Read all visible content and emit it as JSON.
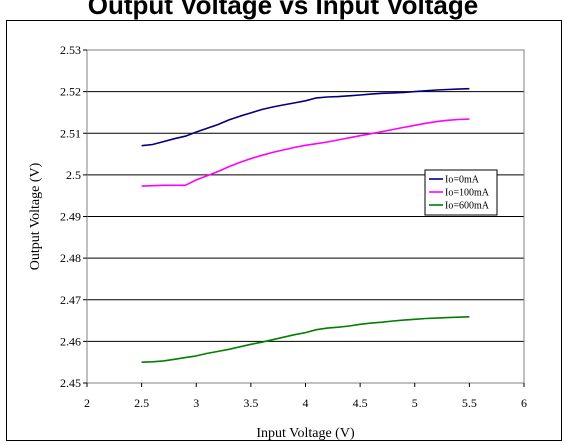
{
  "chart_data": {
    "type": "line",
    "title": "Output Voltage vs Input Voltage",
    "xlabel": "Input Voltage (V)",
    "ylabel": "Output Voltage (V)",
    "xlim": [
      2,
      6
    ],
    "ylim": [
      2.45,
      2.53
    ],
    "x_ticks": [
      "2",
      "2.5",
      "3",
      "3.5",
      "4",
      "4.5",
      "5",
      "5.5",
      "6"
    ],
    "y_ticks": [
      "2.45",
      "2.46",
      "2.47",
      "2.48",
      "2.49",
      "2.5",
      "2.51",
      "2.52",
      "2.53"
    ],
    "grid": "horizontal",
    "legend_position": "right",
    "series": [
      {
        "name": "Io=0mA",
        "color": "#00007f",
        "x": [
          2.5,
          2.6,
          2.7,
          2.8,
          2.9,
          3.0,
          3.1,
          3.2,
          3.3,
          3.4,
          3.5,
          3.6,
          3.7,
          3.8,
          3.9,
          4.0,
          4.1,
          4.2,
          4.3,
          4.4,
          4.5,
          4.6,
          4.7,
          4.8,
          4.9,
          5.0,
          5.1,
          5.2,
          5.3,
          5.4,
          5.5
        ],
        "y": [
          2.507,
          2.5073,
          2.508,
          2.5087,
          2.5093,
          2.5103,
          2.5112,
          2.5121,
          2.5132,
          2.5141,
          2.5149,
          2.5157,
          2.5163,
          2.5168,
          2.5173,
          2.5178,
          2.5185,
          2.5187,
          2.5188,
          2.519,
          2.5192,
          2.5194,
          2.5196,
          2.5197,
          2.5198,
          2.52,
          2.5202,
          2.5204,
          2.5205,
          2.5206,
          2.5207
        ]
      },
      {
        "name": "Io=100mA",
        "color": "#ff00ff",
        "x": [
          2.5,
          2.6,
          2.7,
          2.8,
          2.9,
          3.0,
          3.1,
          3.2,
          3.3,
          3.4,
          3.5,
          3.6,
          3.7,
          3.8,
          3.9,
          4.0,
          4.1,
          4.2,
          4.3,
          4.4,
          4.5,
          4.6,
          4.7,
          4.8,
          4.9,
          5.0,
          5.1,
          5.2,
          5.3,
          5.4,
          5.5
        ],
        "y": [
          2.4973,
          2.4974,
          2.4975,
          2.4975,
          2.4975,
          2.4988,
          2.4998,
          2.5008,
          2.502,
          2.503,
          2.5039,
          2.5047,
          2.5054,
          2.506,
          2.5066,
          2.5071,
          2.5075,
          2.5079,
          2.5084,
          2.5089,
          2.5094,
          2.5099,
          2.5104,
          2.5109,
          2.5114,
          2.5119,
          2.5124,
          2.5128,
          2.5131,
          2.5133,
          2.5134
        ]
      },
      {
        "name": "Io=600mA",
        "color": "#007f00",
        "x": [
          2.5,
          2.6,
          2.7,
          2.8,
          2.9,
          3.0,
          3.1,
          3.2,
          3.3,
          3.4,
          3.5,
          3.6,
          3.7,
          3.8,
          3.9,
          4.0,
          4.1,
          4.2,
          4.3,
          4.4,
          4.5,
          4.6,
          4.7,
          4.8,
          4.9,
          5.0,
          5.1,
          5.2,
          5.3,
          5.4,
          5.5
        ],
        "y": [
          2.455,
          2.4551,
          2.4553,
          2.4557,
          2.4561,
          2.4565,
          2.4571,
          2.4576,
          2.4581,
          2.4587,
          2.4593,
          2.4598,
          2.4604,
          2.461,
          2.4616,
          2.4621,
          2.4628,
          2.4632,
          2.4634,
          2.4637,
          2.4641,
          2.4644,
          2.4646,
          2.4649,
          2.4651,
          2.4653,
          2.4655,
          2.4656,
          2.4657,
          2.4658,
          2.4659
        ]
      }
    ]
  }
}
